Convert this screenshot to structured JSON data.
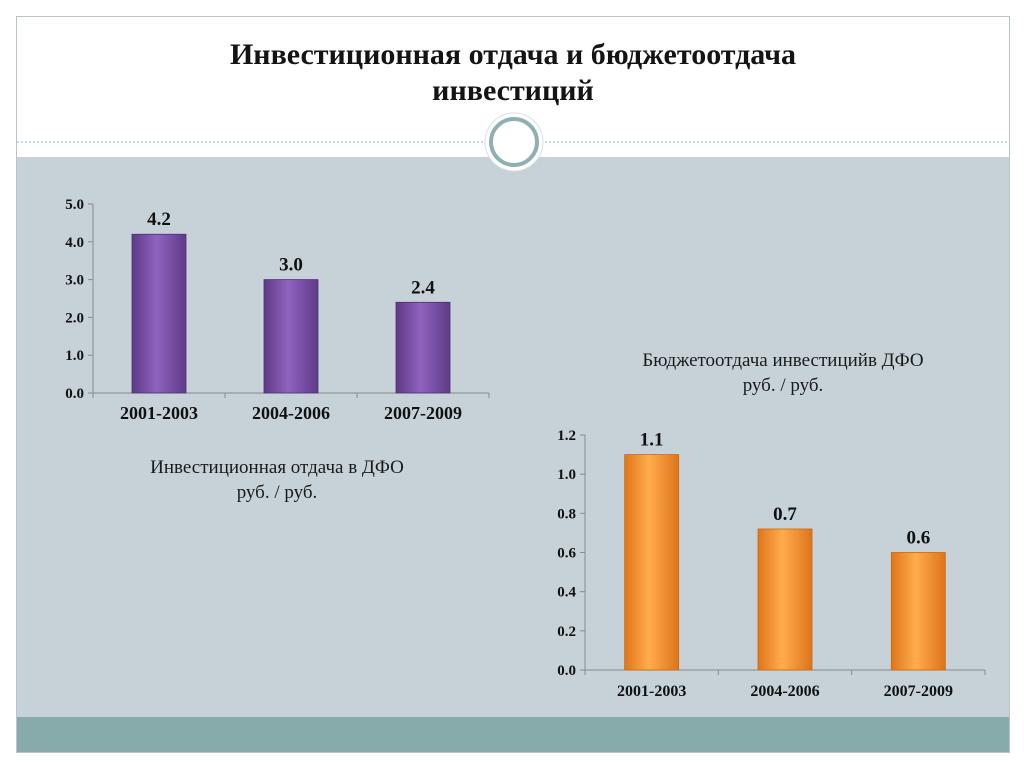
{
  "title": {
    "line1": "Инвестиционная отдача и бюджетоотдача",
    "line2": "инвестиций"
  },
  "colors": {
    "content_background": "#c6d2d7",
    "footer_band": "#87abab",
    "separator": "#8fb0b0"
  },
  "chart_data": [
    {
      "type": "bar",
      "categories": [
        "2001-2003",
        "2004-2006",
        "2007-2009"
      ],
      "values": [
        4.2,
        3.0,
        2.4
      ],
      "value_labels": [
        "4.2",
        "3.0",
        "2.4"
      ],
      "y_ticks": [
        "0.0",
        "1.0",
        "2.0",
        "3.0",
        "4.0",
        "5.0"
      ],
      "ylim": [
        0,
        5
      ],
      "title_lines": [
        "Инвестиционная отдача в ДФО",
        "руб. / руб."
      ],
      "title_position": "below",
      "bar_color": "#7f53ac",
      "grid": false,
      "legend": "none"
    },
    {
      "type": "bar",
      "categories": [
        "2001-2003",
        "2004-2006",
        "2007-2009"
      ],
      "values": [
        1.1,
        0.72,
        0.6
      ],
      "value_labels": [
        "1.1",
        "0.7",
        "0.6"
      ],
      "y_ticks": [
        "0.0",
        "0.2",
        "0.4",
        "0.6",
        "0.8",
        "1.0",
        "1.2"
      ],
      "ylim": [
        0,
        1.2
      ],
      "title_lines": [
        "Бюджетоотдача инвестицийв ДФО",
        "руб. / руб."
      ],
      "title_position": "above",
      "bar_color": "#f39a35",
      "grid": false,
      "legend": "none"
    }
  ]
}
